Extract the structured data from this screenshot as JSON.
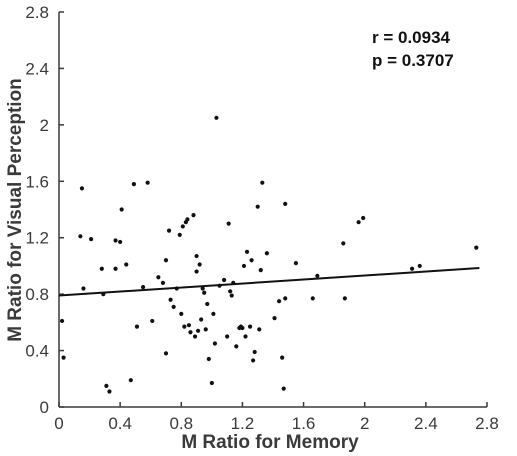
{
  "chart_data": {
    "type": "scatter",
    "title": "",
    "xlabel": "M Ratio for Memory",
    "ylabel": "M Ratio for Visual Perception",
    "xlim": [
      0,
      2.8
    ],
    "ylim": [
      0,
      2.8
    ],
    "xticks": [
      "0",
      "0.4",
      "0.8",
      "1.2",
      "1.6",
      "2",
      "2.4",
      "2.8"
    ],
    "yticks": [
      "0",
      "0.4",
      "0.8",
      "1.2",
      "1.6",
      "2",
      "2.4",
      "2.8"
    ],
    "grid": false,
    "annotations": [
      "r = 0.0934",
      "p = 0.3707"
    ],
    "points": {
      "x": [
        0.02,
        0.03,
        0.14,
        0.15,
        0.16,
        0.21,
        0.28,
        0.29,
        0.31,
        0.33,
        0.37,
        0.37,
        0.4,
        0.41,
        0.44,
        0.47,
        0.49,
        0.51,
        0.55,
        0.58,
        0.61,
        0.65,
        0.68,
        0.7,
        0.7,
        0.72,
        0.73,
        0.75,
        0.77,
        0.79,
        0.8,
        0.81,
        0.82,
        0.83,
        0.84,
        0.85,
        0.86,
        0.88,
        0.89,
        0.9,
        0.9,
        0.91,
        0.92,
        0.93,
        0.94,
        0.95,
        0.96,
        0.97,
        0.98,
        1.0,
        1.01,
        1.02,
        1.03,
        1.05,
        1.08,
        1.1,
        1.11,
        1.12,
        1.13,
        1.14,
        1.16,
        1.18,
        1.19,
        1.2,
        1.21,
        1.22,
        1.23,
        1.25,
        1.26,
        1.27,
        1.28,
        1.3,
        1.31,
        1.32,
        1.33,
        1.36,
        1.41,
        1.44,
        1.46,
        1.47,
        1.48,
        1.48,
        1.55,
        1.66,
        1.69,
        1.86,
        1.87,
        1.96,
        1.99,
        2.31,
        2.36,
        2.73
      ],
      "y": [
        0.61,
        0.35,
        1.21,
        1.55,
        0.84,
        1.19,
        0.98,
        0.8,
        0.15,
        0.11,
        0.98,
        1.18,
        1.17,
        1.4,
        1.01,
        0.19,
        1.58,
        0.57,
        0.85,
        1.59,
        0.61,
        0.92,
        0.88,
        0.38,
        1.04,
        1.25,
        0.76,
        0.71,
        0.84,
        1.22,
        0.66,
        1.28,
        0.57,
        1.31,
        1.33,
        0.58,
        0.53,
        1.36,
        0.5,
        0.96,
        1.07,
        0.54,
        1.01,
        0.62,
        0.84,
        0.81,
        0.55,
        0.73,
        0.34,
        0.17,
        0.66,
        0.45,
        2.05,
        0.86,
        0.9,
        0.5,
        1.3,
        0.82,
        0.79,
        0.88,
        0.43,
        0.56,
        0.57,
        0.56,
        1.0,
        0.5,
        1.1,
        0.57,
        1.04,
        0.33,
        0.39,
        1.42,
        0.55,
        0.97,
        1.59,
        1.09,
        0.63,
        0.75,
        0.35,
        0.13,
        1.44,
        0.77,
        1.02,
        0.77,
        0.93,
        1.16,
        0.77,
        1.31,
        1.34,
        0.98,
        1.0,
        1.13
      ]
    },
    "fit_line": {
      "x": [
        0,
        2.75
      ],
      "y": [
        0.79,
        0.985
      ]
    },
    "colors": {
      "points": "#111111",
      "line": "#111111",
      "axes": "#3a3a3a",
      "text": "#3a3a3a"
    }
  }
}
